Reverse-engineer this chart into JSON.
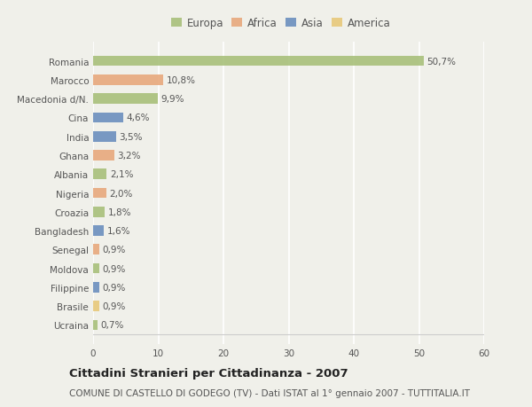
{
  "categories": [
    "Romania",
    "Marocco",
    "Macedonia d/N.",
    "Cina",
    "India",
    "Ghana",
    "Albania",
    "Nigeria",
    "Croazia",
    "Bangladesh",
    "Senegal",
    "Moldova",
    "Filippine",
    "Brasile",
    "Ucraina"
  ],
  "values": [
    50.7,
    10.8,
    9.9,
    4.6,
    3.5,
    3.2,
    2.1,
    2.0,
    1.8,
    1.6,
    0.9,
    0.9,
    0.9,
    0.9,
    0.7
  ],
  "labels": [
    "50,7%",
    "10,8%",
    "9,9%",
    "4,6%",
    "3,5%",
    "3,2%",
    "2,1%",
    "2,0%",
    "1,8%",
    "1,6%",
    "0,9%",
    "0,9%",
    "0,9%",
    "0,9%",
    "0,7%"
  ],
  "continents": [
    "Europa",
    "Africa",
    "Europa",
    "Asia",
    "Asia",
    "Africa",
    "Europa",
    "Africa",
    "Europa",
    "Asia",
    "Africa",
    "Europa",
    "Asia",
    "America",
    "Europa"
  ],
  "colors": {
    "Europa": "#a8c07a",
    "Africa": "#e8a87c",
    "Asia": "#6b8fbe",
    "America": "#e8c87a"
  },
  "xlim": [
    0,
    60
  ],
  "xticks": [
    0,
    10,
    20,
    30,
    40,
    50,
    60
  ],
  "title": "Cittadini Stranieri per Cittadinanza - 2007",
  "subtitle": "COMUNE DI CASTELLO DI GODEGO (TV) - Dati ISTAT al 1° gennaio 2007 - TUTTITALIA.IT",
  "background_color": "#f0f0ea",
  "bar_height": 0.55,
  "grid_color": "#ffffff",
  "label_fontsize": 7.5,
  "tick_fontsize": 7.5,
  "title_fontsize": 9.5,
  "subtitle_fontsize": 7.5,
  "legend_order": [
    "Europa",
    "Africa",
    "Asia",
    "America"
  ]
}
